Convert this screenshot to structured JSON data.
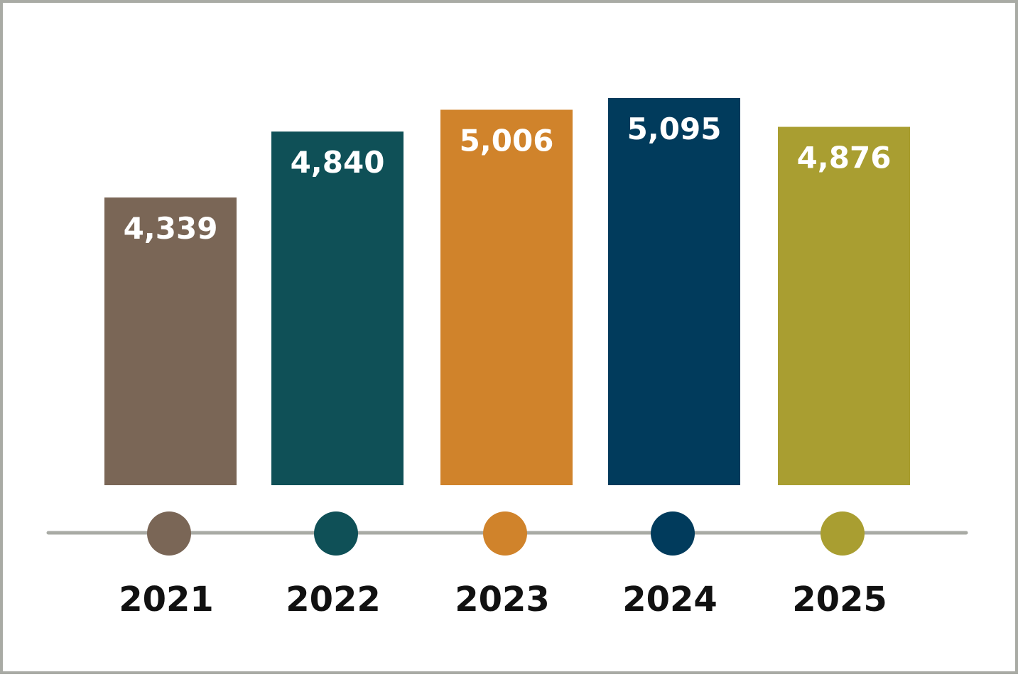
{
  "chart_data": {
    "type": "bar",
    "categories": [
      "2021",
      "2022",
      "2023",
      "2024",
      "2025"
    ],
    "values": [
      4339,
      4840,
      5006,
      5095,
      4876
    ],
    "value_labels": [
      "4,339",
      "4,840",
      "5,006",
      "5,095",
      "4,876"
    ],
    "colors": [
      "#7a6656",
      "#0f5057",
      "#d0832b",
      "#013b5c",
      "#a99e31"
    ],
    "timeline_color": "#a9aba5",
    "title": "",
    "xlabel": "",
    "ylabel": "",
    "grid": false,
    "legend": "none"
  }
}
